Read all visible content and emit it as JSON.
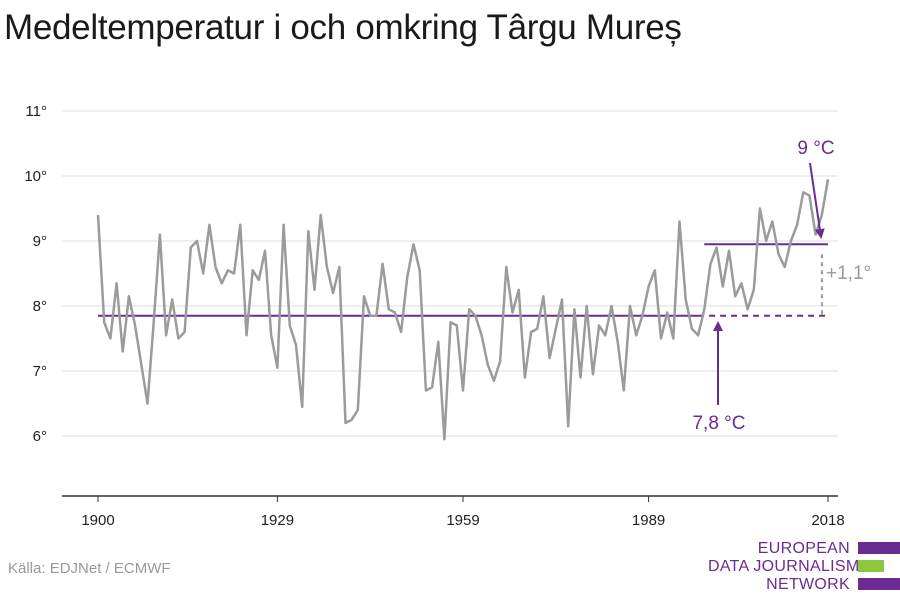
{
  "title": "Medeltemperatur i och omkring Târgu Mureș",
  "source": "Källa: EDJNet / ECMWF",
  "logo": {
    "lines": [
      "EUROPEAN",
      "DATA JOURNALISM",
      "NETWORK"
    ],
    "colors": {
      "purple": "#6a2c91",
      "green": "#8dc63f"
    }
  },
  "colors": {
    "series": "#9b9b9b",
    "accent": "#6a2c91",
    "diff": "#9a9a9a",
    "grid": "#dddddd",
    "axis": "#333333"
  },
  "chart_data": {
    "type": "line",
    "title": "Medeltemperatur i och omkring Târgu Mureș",
    "xlabel": "",
    "ylabel": "",
    "x_ticks": [
      1900,
      1929,
      1959,
      1989,
      2018
    ],
    "y_ticks": [
      6,
      7,
      8,
      9,
      10,
      11
    ],
    "y_tick_labels": [
      "6°",
      "7°",
      "8°",
      "9°",
      "10°",
      "11°"
    ],
    "xlim": [
      1900,
      2018
    ],
    "ylim": [
      5,
      11
    ],
    "grid": "horizontal",
    "series": [
      {
        "x": [
          1900,
          1901,
          1902,
          1903,
          1904,
          1905,
          1906,
          1907,
          1908,
          1909,
          1910,
          1911,
          1912,
          1913,
          1914,
          1915,
          1916,
          1917,
          1918,
          1919,
          1920,
          1921,
          1922,
          1923,
          1924,
          1925,
          1926,
          1927,
          1928,
          1929,
          1930,
          1931,
          1932,
          1933,
          1934,
          1935,
          1936,
          1937,
          1938,
          1939,
          1940,
          1941,
          1942,
          1943,
          1944,
          1945,
          1946,
          1947,
          1948,
          1949,
          1950,
          1951,
          1952,
          1953,
          1954,
          1955,
          1956,
          1957,
          1958,
          1959,
          1960,
          1961,
          1962,
          1963,
          1964,
          1965,
          1966,
          1967,
          1968,
          1969,
          1970,
          1971,
          1972,
          1973,
          1974,
          1975,
          1976,
          1977,
          1978,
          1979,
          1980,
          1981,
          1982,
          1983,
          1984,
          1985,
          1986,
          1987,
          1988,
          1989,
          1990,
          1991,
          1992,
          1993,
          1994,
          1995,
          1996,
          1997,
          1998,
          1999,
          2000,
          2001,
          2002,
          2003,
          2004,
          2005,
          2006,
          2007,
          2008,
          2009,
          2010,
          2011,
          2012,
          2013,
          2014,
          2015,
          2016,
          2017,
          2018
        ],
        "values": [
          9.4,
          7.75,
          7.5,
          8.35,
          7.3,
          8.15,
          7.7,
          7.1,
          6.5,
          7.75,
          9.1,
          7.55,
          8.1,
          7.5,
          7.6,
          8.9,
          9.0,
          8.5,
          9.25,
          8.6,
          8.35,
          8.55,
          8.5,
          9.25,
          7.55,
          8.55,
          8.4,
          8.85,
          7.55,
          7.05,
          9.25,
          7.7,
          7.4,
          6.45,
          9.15,
          8.25,
          9.4,
          8.6,
          8.2,
          8.6,
          6.2,
          6.25,
          6.4,
          8.15,
          7.85,
          7.85,
          8.65,
          7.95,
          7.9,
          7.6,
          8.45,
          8.95,
          8.55,
          6.7,
          6.75,
          7.45,
          5.95,
          7.75,
          7.7,
          6.7,
          7.95,
          7.85,
          7.55,
          7.1,
          6.85,
          7.15,
          8.6,
          7.9,
          8.25,
          6.9,
          7.6,
          7.65,
          8.15,
          7.2,
          7.65,
          8.1,
          6.15,
          7.95,
          6.9,
          8.0,
          6.95,
          7.7,
          7.55,
          8.0,
          7.45,
          6.7,
          8.0,
          7.55,
          7.85,
          8.3,
          8.55,
          7.5,
          7.9,
          7.5,
          9.3,
          8.1,
          7.65,
          7.55,
          7.95,
          8.65,
          8.9,
          8.3,
          8.85,
          8.15,
          8.35,
          7.95,
          8.25,
          9.5,
          9.0,
          9.3,
          8.8,
          8.6,
          9.0,
          9.25,
          9.75,
          9.7,
          9.1,
          9.4,
          9.95
        ]
      }
    ],
    "baseline": {
      "label": "7,8 °C",
      "value": 7.85,
      "x_start": 1900,
      "x_end": 1997,
      "dashed_until": 2018
    },
    "recent_mean": {
      "label": "9 °C",
      "value": 8.95,
      "x_start": 1998,
      "x_end": 2018
    },
    "difference": {
      "label": "+1,1°"
    }
  }
}
